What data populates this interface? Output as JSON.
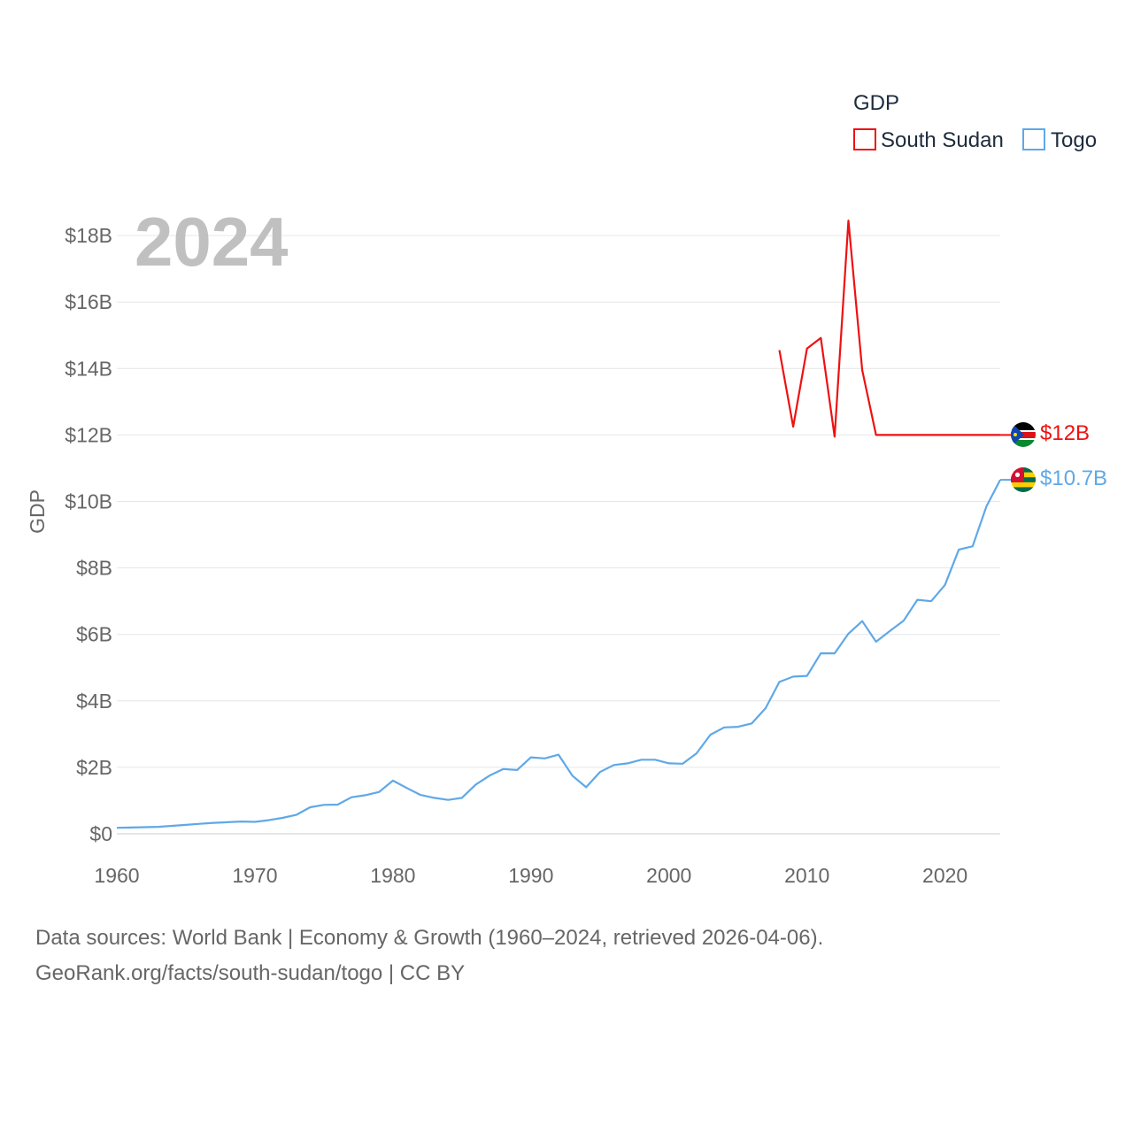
{
  "chart_data": {
    "type": "line",
    "year_label": "2024",
    "ylabel": "GDP",
    "xlabel": "",
    "xlim": [
      1960,
      2024
    ],
    "ylim": [
      0,
      19
    ],
    "x_ticks": [
      1960,
      1970,
      1980,
      1990,
      2000,
      2010,
      2020
    ],
    "x_tick_labels": [
      "1960",
      "1970",
      "1980",
      "1990",
      "2000",
      "2010",
      "2020"
    ],
    "y_ticks": [
      0,
      2,
      4,
      6,
      8,
      10,
      12,
      14,
      16,
      18
    ],
    "y_tick_labels": [
      "$0",
      "$2B",
      "$4B",
      "$6B",
      "$8B",
      "$10B",
      "$12B",
      "$14B",
      "$16B",
      "$18B"
    ],
    "legend": {
      "title": "GDP",
      "position": "top-right"
    },
    "series": [
      {
        "name": "South Sudan",
        "color": "#ee1111",
        "end_label": "$12B",
        "flag": "south-sudan-flag-icon",
        "x": [
          2008,
          2009,
          2010,
          2011,
          2012,
          2013,
          2014,
          2015,
          2016,
          2017,
          2018,
          2019,
          2020,
          2021,
          2022,
          2023,
          2024
        ],
        "values": [
          14.55,
          12.25,
          14.6,
          14.92,
          11.95,
          18.45,
          13.95,
          12.0,
          12.0,
          12.0,
          12.0,
          12.0,
          12.0,
          12.0,
          12.0,
          12.0,
          12.0
        ]
      },
      {
        "name": "Togo",
        "color": "#5fa8e8",
        "end_label": "$10.7B",
        "flag": "togo-flag-icon",
        "x": [
          1960,
          1961,
          1962,
          1963,
          1964,
          1965,
          1966,
          1967,
          1968,
          1969,
          1970,
          1971,
          1972,
          1973,
          1974,
          1975,
          1976,
          1977,
          1978,
          1979,
          1980,
          1981,
          1982,
          1983,
          1984,
          1985,
          1986,
          1987,
          1988,
          1989,
          1990,
          1991,
          1992,
          1993,
          1994,
          1995,
          1996,
          1997,
          1998,
          1999,
          2000,
          2001,
          2002,
          2003,
          2004,
          2005,
          2006,
          2007,
          2008,
          2009,
          2010,
          2011,
          2012,
          2013,
          2014,
          2015,
          2016,
          2017,
          2018,
          2019,
          2020,
          2021,
          2022,
          2023,
          2024
        ],
        "values": [
          0.18,
          0.19,
          0.2,
          0.21,
          0.24,
          0.27,
          0.3,
          0.33,
          0.35,
          0.37,
          0.36,
          0.41,
          0.48,
          0.57,
          0.8,
          0.87,
          0.88,
          1.1,
          1.16,
          1.26,
          1.6,
          1.38,
          1.17,
          1.08,
          1.02,
          1.08,
          1.48,
          1.75,
          1.95,
          1.92,
          2.3,
          2.27,
          2.38,
          1.75,
          1.4,
          1.86,
          2.07,
          2.12,
          2.23,
          2.23,
          2.12,
          2.11,
          2.42,
          2.98,
          3.2,
          3.22,
          3.32,
          3.78,
          4.57,
          4.73,
          4.75,
          5.43,
          5.43,
          6.02,
          6.4,
          5.78,
          6.1,
          6.41,
          7.04,
          7.0,
          7.49,
          8.55,
          8.65,
          9.85,
          10.65
        ]
      }
    ]
  },
  "footer": {
    "line1": "Data sources: World Bank | Economy & Growth (1960–2024, retrieved 2026-04-06).",
    "line2": "GeoRank.org/facts/south-sudan/togo | CC BY"
  }
}
